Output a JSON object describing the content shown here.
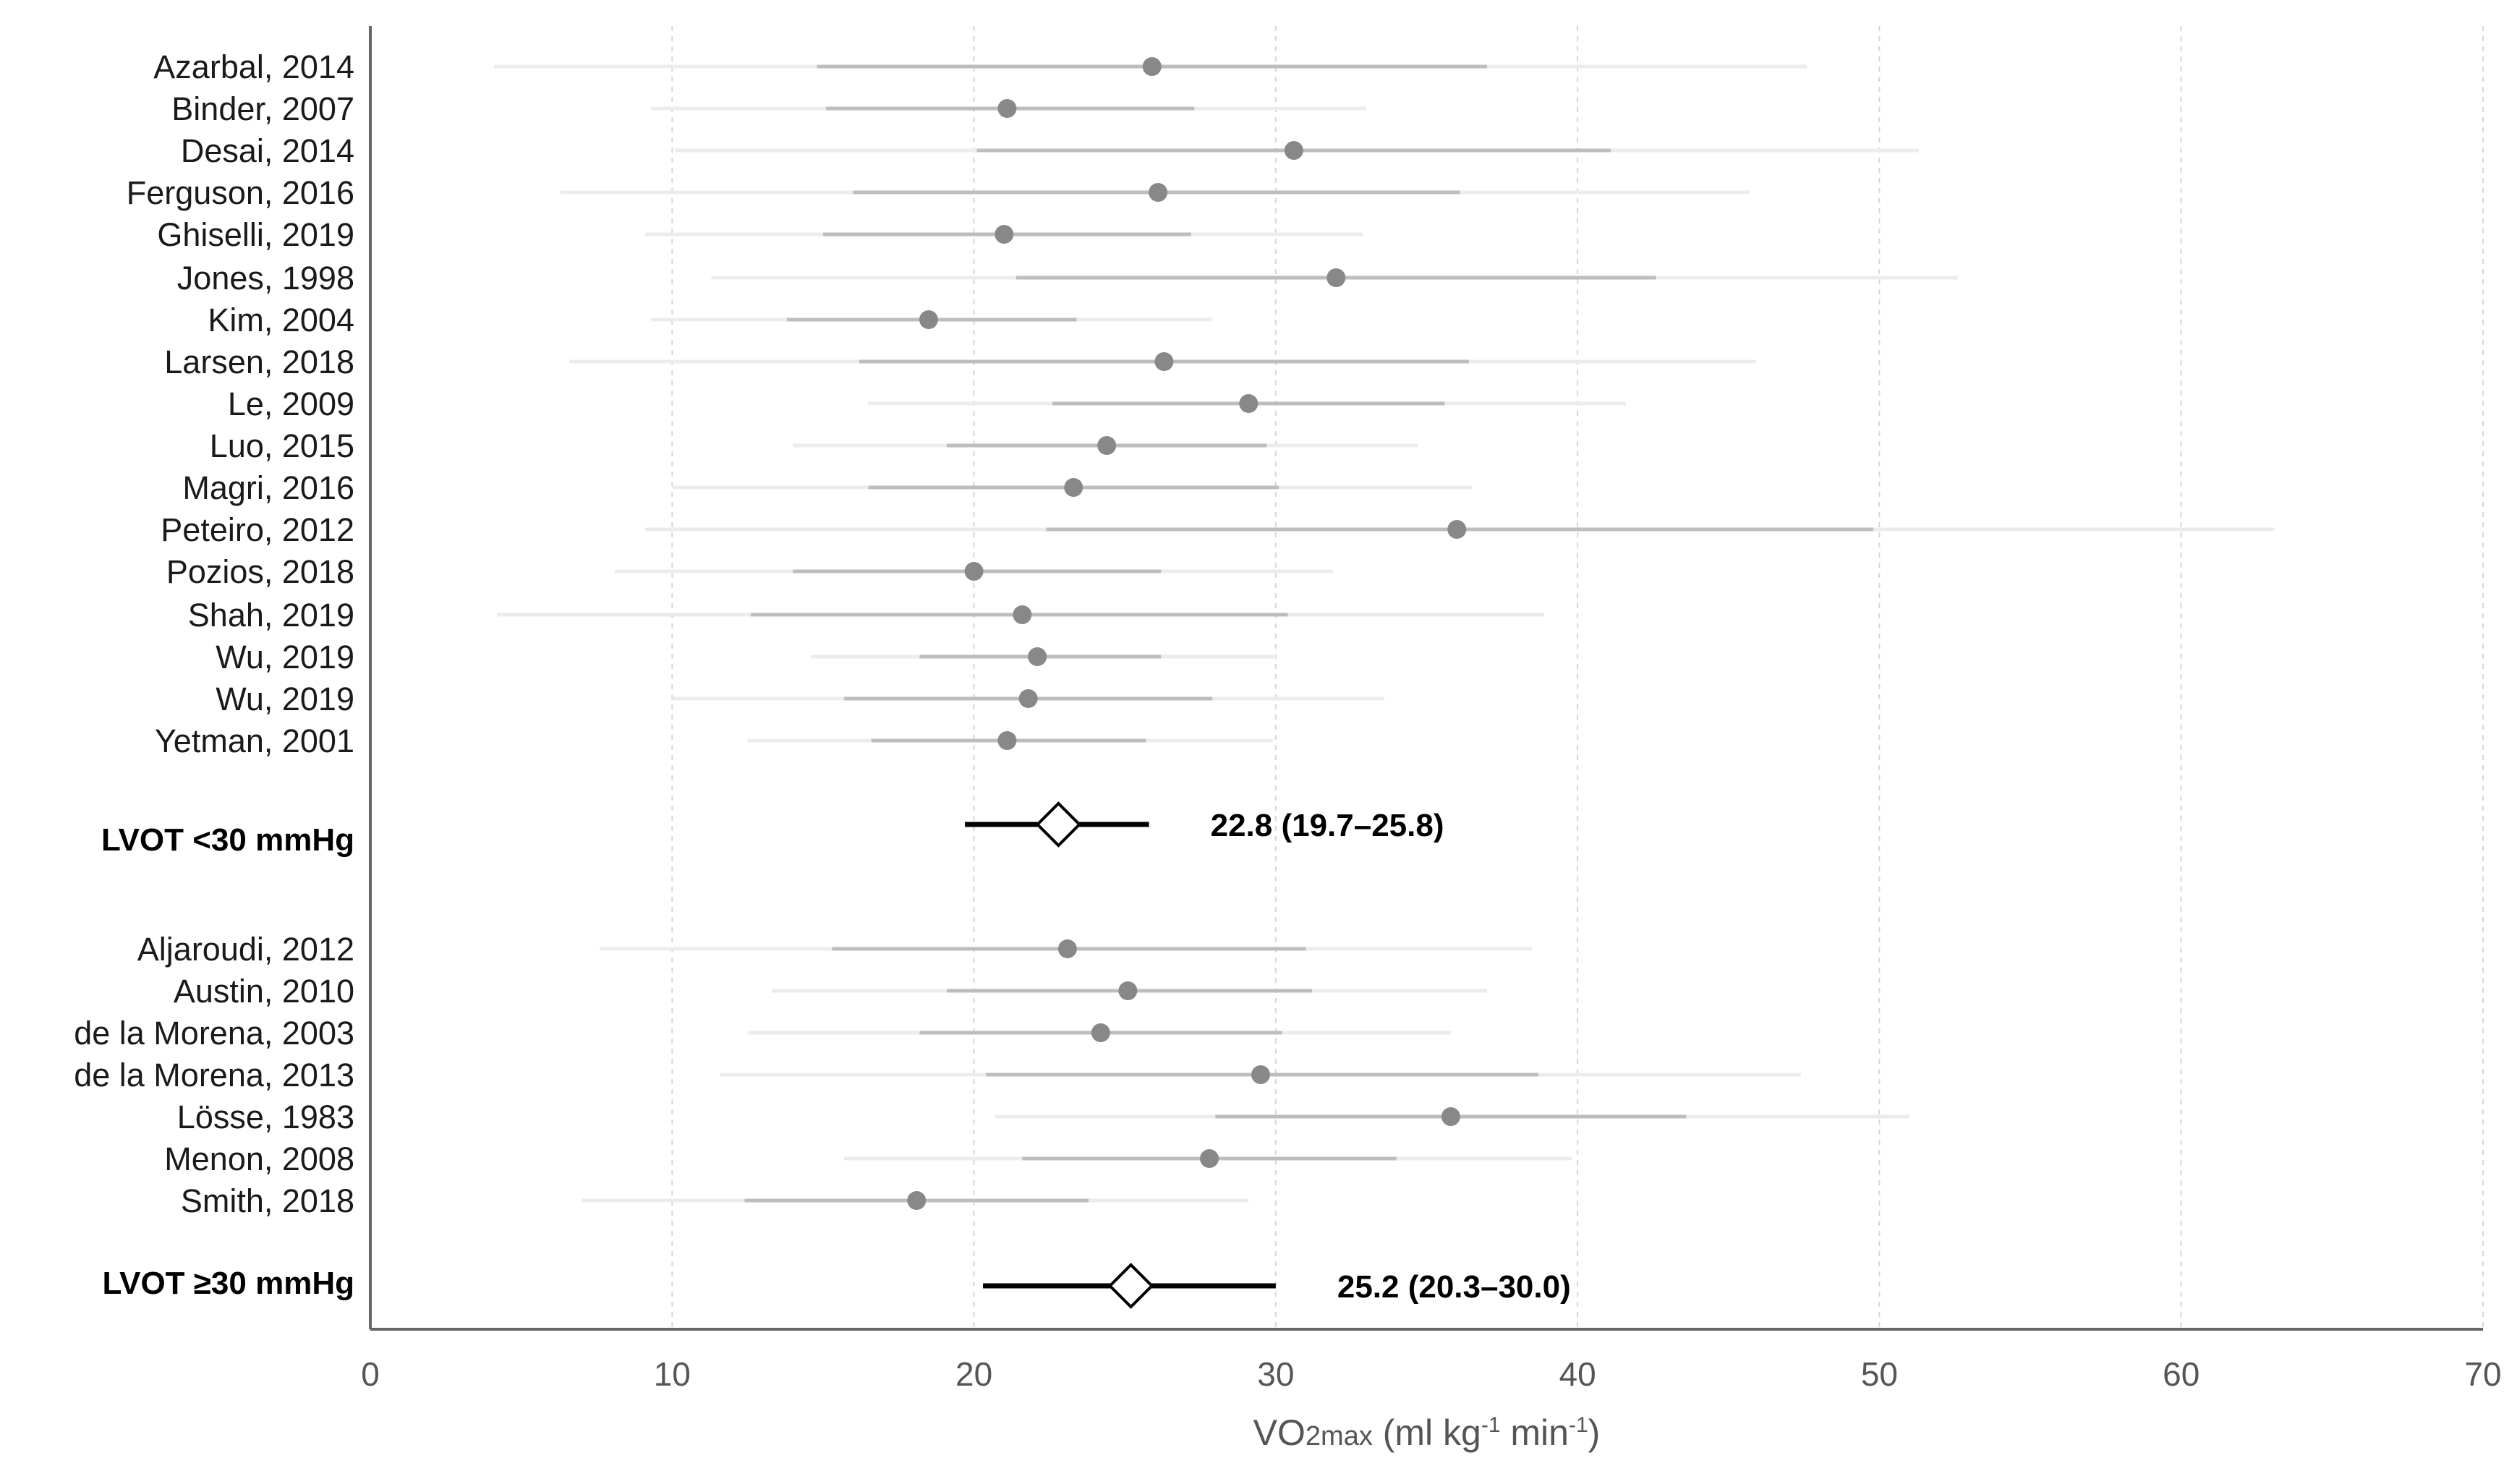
{
  "chart_data": {
    "type": "scatter",
    "subtype": "forest-plot",
    "xlabel": "VO2max (ml kg-1 min-1)",
    "xlabel_parts": {
      "pre": "VO",
      "sub": "2max",
      "units_pre": " (ml kg",
      "sup1": "-1",
      "units_mid": " min",
      "sup2": "-1",
      "units_post": ")"
    },
    "xlim": [
      0,
      70
    ],
    "xticks": [
      0,
      10,
      20,
      30,
      40,
      50,
      60,
      70
    ],
    "grid": "vertical dashed",
    "colors": {
      "point": "#888888",
      "ci_inner": "#bdbdbd",
      "ci_outer": "#ececec",
      "summary": "#000000",
      "axis": "#666666"
    },
    "groups": [
      {
        "name": "LVOT <30 mmHg",
        "studies": [
          {
            "label": "Azarbal, 2014",
            "mean": 25.9,
            "ci_inner": [
              14.8,
              37.0
            ],
            "ci_outer": [
              4.1,
              47.6
            ]
          },
          {
            "label": "Binder, 2007",
            "mean": 21.1,
            "ci_inner": [
              15.1,
              27.3
            ],
            "ci_outer": [
              9.3,
              33.0
            ]
          },
          {
            "label": "Desai, 2014",
            "mean": 30.6,
            "ci_inner": [
              20.1,
              41.1
            ],
            "ci_outer": [
              10.1,
              51.3
            ]
          },
          {
            "label": "Ferguson, 2016",
            "mean": 26.1,
            "ci_inner": [
              16.0,
              36.1
            ],
            "ci_outer": [
              6.3,
              45.7
            ]
          },
          {
            "label": "Ghiselli, 2019",
            "mean": 21.0,
            "ci_inner": [
              15.0,
              27.2
            ],
            "ci_outer": [
              9.1,
              32.9
            ]
          },
          {
            "label": "Jones, 1998",
            "mean": 32.0,
            "ci_inner": [
              21.4,
              42.6
            ],
            "ci_outer": [
              11.3,
              52.6
            ]
          },
          {
            "label": "Kim, 2004",
            "mean": 18.5,
            "ci_inner": [
              13.8,
              23.4
            ],
            "ci_outer": [
              9.3,
              27.9
            ]
          },
          {
            "label": "Larsen, 2018",
            "mean": 26.3,
            "ci_inner": [
              16.2,
              36.4
            ],
            "ci_outer": [
              6.6,
              45.9
            ]
          },
          {
            "label": "Le, 2009",
            "mean": 29.1,
            "ci_inner": [
              22.6,
              35.6
            ],
            "ci_outer": [
              16.5,
              41.6
            ]
          },
          {
            "label": "Luo, 2015",
            "mean": 24.4,
            "ci_inner": [
              19.1,
              29.7
            ],
            "ci_outer": [
              14.0,
              34.7
            ]
          },
          {
            "label": "Magri, 2016",
            "mean": 23.3,
            "ci_inner": [
              16.5,
              30.1
            ],
            "ci_outer": [
              10.0,
              36.5
            ]
          },
          {
            "label": "Peteiro, 2012",
            "mean": 36.0,
            "ci_inner": [
              22.4,
              49.8
            ],
            "ci_outer": [
              9.1,
              63.1
            ]
          },
          {
            "label": "Pozios, 2018",
            "mean": 20.0,
            "ci_inner": [
              14.0,
              26.2
            ],
            "ci_outer": [
              8.1,
              31.9
            ]
          },
          {
            "label": "Shah, 2019",
            "mean": 21.6,
            "ci_inner": [
              12.6,
              30.4
            ],
            "ci_outer": [
              4.2,
              38.9
            ]
          },
          {
            "label": "Wu, 2019",
            "mean": 22.1,
            "ci_inner": [
              18.2,
              26.2
            ],
            "ci_outer": [
              14.6,
              30.0
            ]
          },
          {
            "label": "Wu, 2019",
            "mean": 21.8,
            "ci_inner": [
              15.7,
              27.9
            ],
            "ci_outer": [
              10.0,
              33.6
            ]
          },
          {
            "label": "Yetman, 2001",
            "mean": 21.1,
            "ci_inner": [
              16.6,
              25.7
            ],
            "ci_outer": [
              12.5,
              29.9
            ]
          }
        ],
        "summary": {
          "label": "LVOT <30 mmHg",
          "estimate": 22.8,
          "ci": [
            19.7,
            25.8
          ],
          "text": "22.8 (19.7–25.8)"
        }
      },
      {
        "name": "LVOT ≥30 mmHg",
        "studies": [
          {
            "label": "Aljaroudi, 2012",
            "mean": 23.1,
            "ci_inner": [
              15.3,
              31.0
            ],
            "ci_outer": [
              7.6,
              38.5
            ]
          },
          {
            "label": "Austin, 2010",
            "mean": 25.1,
            "ci_inner": [
              19.1,
              31.2
            ],
            "ci_outer": [
              13.3,
              37.0
            ]
          },
          {
            "label": "de la Morena, 2003",
            "mean": 24.2,
            "ci_inner": [
              18.2,
              30.2
            ],
            "ci_outer": [
              12.5,
              35.8
            ]
          },
          {
            "label": "de la Morena, 2013",
            "mean": 29.5,
            "ci_inner": [
              20.4,
              38.7
            ],
            "ci_outer": [
              11.6,
              47.4
            ]
          },
          {
            "label": "Lösse, 1983",
            "mean": 35.8,
            "ci_inner": [
              28.0,
              43.6
            ],
            "ci_outer": [
              20.7,
              51.0
            ]
          },
          {
            "label": "Menon, 2008",
            "mean": 27.8,
            "ci_inner": [
              21.6,
              34.0
            ],
            "ci_outer": [
              15.7,
              39.8
            ]
          },
          {
            "label": "Smith, 2018",
            "mean": 18.1,
            "ci_inner": [
              12.4,
              23.8
            ],
            "ci_outer": [
              7.0,
              29.1
            ]
          }
        ],
        "summary": {
          "label": "LVOT ≥30 mmHg",
          "estimate": 25.2,
          "ci": [
            20.3,
            30.0
          ],
          "text": "25.2 (20.3–30.0)"
        }
      }
    ]
  }
}
